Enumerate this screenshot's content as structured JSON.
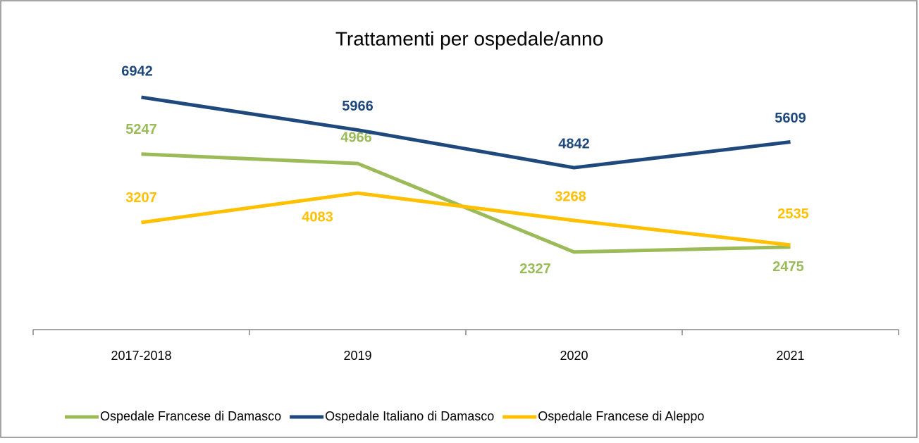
{
  "chart_data": {
    "type": "line",
    "title": "Trattamenti per ospedale/anno",
    "categories": [
      "2017-2018",
      "2019",
      "2020",
      "2021"
    ],
    "series": [
      {
        "name": "Ospedale Francese di Damasco",
        "color": "#9bbb59",
        "values": [
          5247,
          4966,
          2327,
          2475
        ]
      },
      {
        "name": "Ospedale Italiano di Damasco",
        "color": "#1f497d",
        "values": [
          6942,
          5966,
          4842,
          5609
        ]
      },
      {
        "name": "Ospedale Francese di Aleppo",
        "color": "#ffc000",
        "values": [
          3207,
          4083,
          3268,
          2535
        ]
      }
    ],
    "ylim": [
      0,
      8000
    ],
    "legend": "bottom"
  }
}
